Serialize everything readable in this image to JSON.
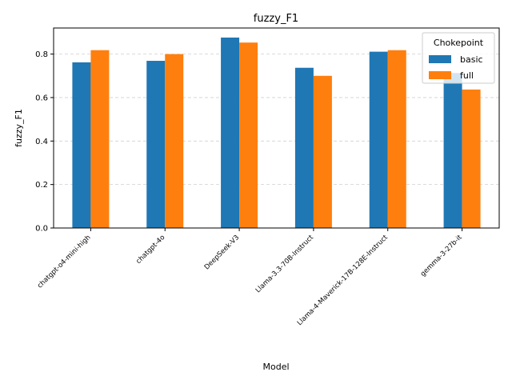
{
  "chart_data": {
    "type": "bar",
    "title": "fuzzy_F1",
    "xlabel": "Model",
    "ylabel": "fuzzy_F1",
    "categories": [
      "chatgpt-o4-mini-high",
      "chatgpt-4o",
      "DeepSeek-V3",
      "Llama-3.3-70B-Instruct",
      "Llama-4-Maverick-17B-128E-Instruct",
      "gemma-3-27b-it"
    ],
    "series": [
      {
        "name": "basic",
        "color": "#1f77b4",
        "values": [
          0.762,
          0.769,
          0.876,
          0.737,
          0.811,
          0.713
        ]
      },
      {
        "name": "full",
        "color": "#ff7f0e",
        "values": [
          0.818,
          0.8,
          0.853,
          0.7,
          0.818,
          0.637
        ]
      }
    ],
    "ylim": [
      0,
      0.92
    ],
    "yticks": [
      "0.0",
      "0.2",
      "0.4",
      "0.6",
      "0.8"
    ],
    "grid": "y-dashed",
    "legend": {
      "title": "Chokepoint",
      "position": "upper right"
    }
  }
}
